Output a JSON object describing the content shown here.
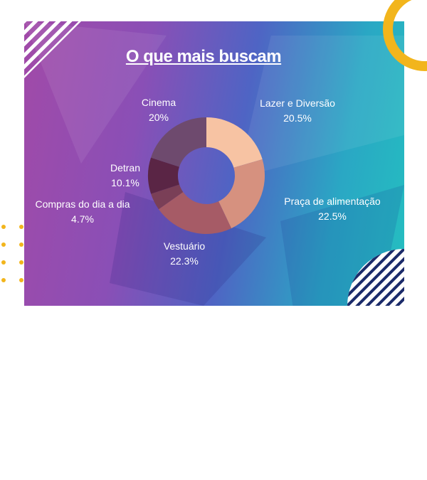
{
  "chart_data": {
    "type": "pie",
    "title": "O que mais buscam",
    "categories": [
      "Lazer e Diversão",
      "Praça de alimentação",
      "Vestuário",
      "Compras do dia a dia",
      "Detran",
      "Cinema"
    ],
    "values": [
      20.5,
      22.5,
      22.3,
      4.7,
      10.1,
      20
    ],
    "value_labels": [
      "20.5%",
      "22.5%",
      "22.3%",
      "4.7%",
      "10.1%",
      "20%"
    ],
    "colors": [
      "#f7c3a3",
      "#d6917f",
      "#a65b66",
      "#7a3f57",
      "#5a2545",
      "#6e4a6e"
    ],
    "donut": true
  },
  "colors": {
    "accent_yellow": "#f2b51c",
    "stripe_white": "#ffffff",
    "stripe_navy": "#1c2c6b"
  }
}
